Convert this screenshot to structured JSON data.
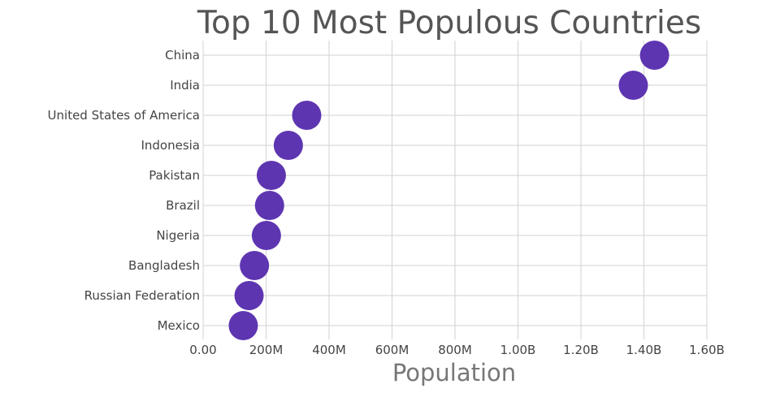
{
  "chart_data": {
    "type": "scatter",
    "title": "Top 10 Most Populous Countries",
    "xlabel": "Population",
    "ylabel": "",
    "xlim": [
      0,
      1600000000
    ],
    "x_tick_values": [
      0,
      200000000,
      400000000,
      600000000,
      800000000,
      1000000000,
      1200000000,
      1400000000,
      1600000000
    ],
    "x_tick_labels": [
      "0.00",
      "200M",
      "400M",
      "600M",
      "800M",
      "1.00B",
      "1.20B",
      "1.40B",
      "1.60B"
    ],
    "categories": [
      "China",
      "India",
      "United States of America",
      "Indonesia",
      "Pakistan",
      "Brazil",
      "Nigeria",
      "Bangladesh",
      "Russian Federation",
      "Mexico"
    ],
    "series": [
      {
        "values": [
          1433800000,
          1366400000,
          329000000,
          270600000,
          216600000,
          211000000,
          201000000,
          163000000,
          145900000,
          127600000
        ]
      }
    ],
    "grid": true,
    "legend": "none",
    "marker_color": "#5e35b1"
  }
}
